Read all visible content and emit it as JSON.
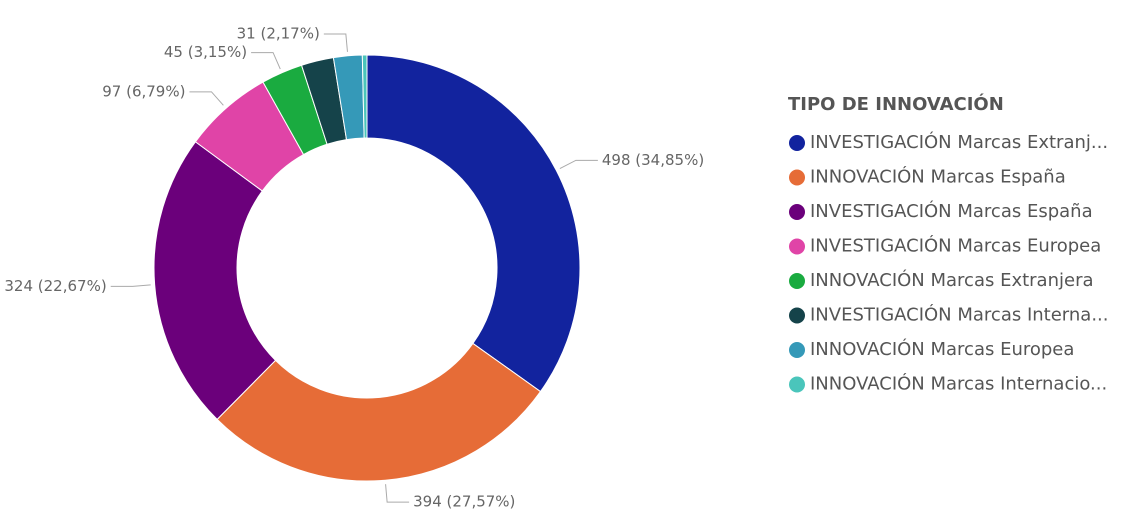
{
  "chart_data": {
    "type": "donut",
    "legend_title": "TIPO DE INNOVACIÓN",
    "legend": "right",
    "categories": [
      "INVESTIGACIÓN Marcas Extranj...",
      "INNOVACIÓN Marcas España",
      "INVESTIGACIÓN Marcas España",
      "INVESTIGACIÓN Marcas Europea",
      "INNOVACIÓN Marcas Extranjera",
      "INVESTIGACIÓN Marcas Interna...",
      "INNOVACIÓN Marcas Europea",
      "INNOVACIÓN Marcas Internacio..."
    ],
    "values": [
      498,
      394,
      324,
      97,
      45,
      35,
      31,
      5
    ],
    "value_labels": [
      "498 (34,85%)",
      "394 (27,57%)",
      "324 (22,67%)",
      "97 (6,79%)",
      "45 (3,15%)",
      null,
      "31 (2,17%)",
      null
    ],
    "colors": [
      "#12239E",
      "#E66C37",
      "#6B007B",
      "#E044A7",
      "#1AAB40",
      "#15434A",
      "#3599B8",
      "#4AC5BB"
    ]
  }
}
